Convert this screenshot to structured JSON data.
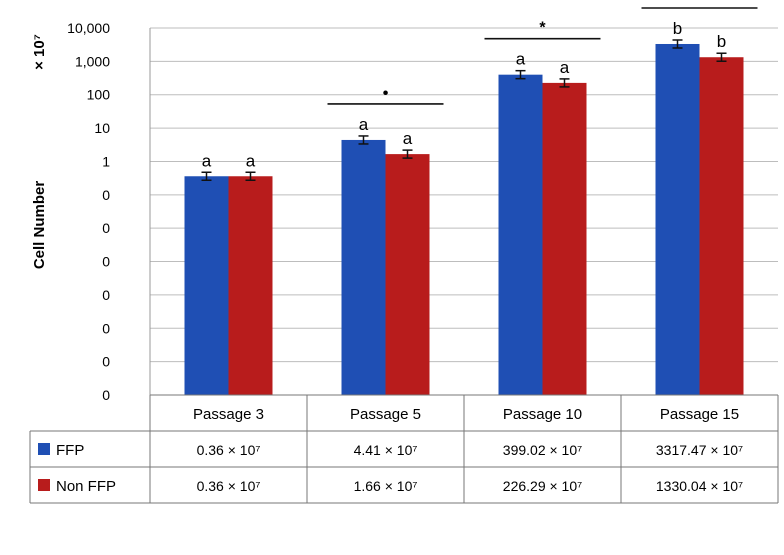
{
  "chart_data": {
    "type": "bar",
    "scale": "log",
    "ylabel": "Cell Number",
    "yunit": "× 10⁷",
    "ytick_labels": [
      "0",
      "0",
      "0",
      "0",
      "0",
      "0",
      "0",
      "1",
      "10",
      "100",
      "1,000",
      "10,000"
    ],
    "categories": [
      "Passage 3",
      "Passage 5",
      "Passage 10",
      "Passage 15"
    ],
    "series": [
      {
        "name": "FFP",
        "color": "#1f4fb4",
        "values": [
          0.36,
          4.41,
          399.02,
          3317.47
        ],
        "labels": [
          "0.36 × 10⁷",
          "4.41 × 10⁷",
          "399.02 × 10⁷",
          "3317.47 × 10⁷"
        ],
        "letters": [
          "a",
          "a",
          "a",
          "b"
        ]
      },
      {
        "name": "Non FFP",
        "color": "#b81c1c",
        "values": [
          0.36,
          1.66,
          226.29,
          1330.04
        ],
        "labels": [
          "0.36 × 10⁷",
          "1.66 × 10⁷",
          "226.29 × 10⁷",
          "1330.04 × 10⁷"
        ],
        "letters": [
          "a",
          "a",
          "a",
          "b"
        ]
      }
    ],
    "significance": [
      "",
      "•",
      "*",
      "•"
    ],
    "ylim_log10": [
      -7,
      4
    ],
    "grid": true
  }
}
